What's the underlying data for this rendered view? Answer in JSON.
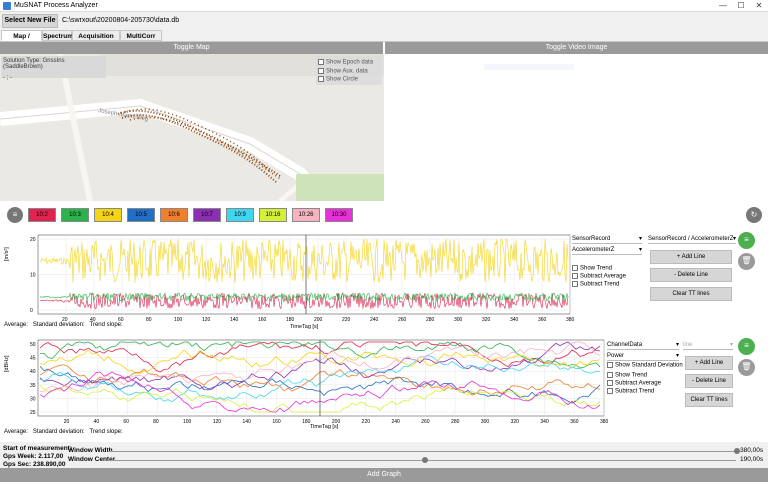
{
  "window": {
    "title": "MuSNAT Process Analyzer",
    "minimize": "—",
    "maximize": "☐",
    "close": "✕"
  },
  "file": {
    "select_label": "Select New File",
    "path": "C:\\swrxout\\20200804-205730\\data.db"
  },
  "tabs": [
    "Map / Graphs",
    "Spectrum",
    "Acquisition Plot",
    "MultiCorr Plot"
  ],
  "map": {
    "toggle_label": "Toggle Map",
    "solution_type": "Solution Type: GnssIns (SaddleBrown)",
    "solution_extra": "- ; -",
    "street_label": "Joseph-Mann-Weg",
    "options": [
      "Show Epoch data",
      "Show Aux. data",
      "Show Circle"
    ]
  },
  "video": {
    "toggle_label": "Toggle Video Image"
  },
  "legend": {
    "items": [
      {
        "label": "10:2",
        "color": "#e0234f"
      },
      {
        "label": "10:3",
        "color": "#2bb24c"
      },
      {
        "label": "10:4",
        "color": "#f5d316"
      },
      {
        "label": "10:5",
        "color": "#1f6fc9"
      },
      {
        "label": "10:6",
        "color": "#f07f2d"
      },
      {
        "label": "10:7",
        "color": "#8b2fb5"
      },
      {
        "label": "10:9",
        "color": "#3fd7f0"
      },
      {
        "label": "10:16",
        "color": "#d6f03a"
      },
      {
        "label": "10:26",
        "color": "#f7b3c0"
      },
      {
        "label": "10:30",
        "color": "#e830d8"
      }
    ]
  },
  "graph1": {
    "ylabel": "[m/s²]",
    "xlabel": "TimeTag [s]",
    "yticks": [
      "20",
      "10",
      "0"
    ],
    "xticks": [
      "20",
      "40",
      "60",
      "80",
      "100",
      "120",
      "140",
      "160",
      "180",
      "200",
      "220",
      "240",
      "260",
      "280",
      "300",
      "320",
      "340",
      "360",
      "380"
    ],
    "source": "SensorRecord",
    "field": "AccelerometerZ",
    "line_select": "SensorRecord / AccelerometerZ",
    "options": [
      "Show Trend",
      "Subtract Average",
      "Subtract Trend"
    ],
    "add_line": "+ Add Line",
    "delete_line": "- Delete Line",
    "clear_tt": "Clear TT lines",
    "stats": {
      "average": "Average:",
      "stddev": "Standard deviation:",
      "trend": "Trend slope:"
    }
  },
  "graph2": {
    "ylabel": "[dBHz]",
    "xlabel": "TimeTag [s]",
    "yticks": [
      "50",
      "45",
      "40",
      "35",
      "30",
      "25"
    ],
    "xticks": [
      "20",
      "40",
      "60",
      "80",
      "100",
      "120",
      "140",
      "160",
      "180",
      "200",
      "220",
      "240",
      "260",
      "280",
      "300",
      "320",
      "340",
      "360",
      "380"
    ],
    "source": "ChannelData",
    "field": "Power",
    "line_select": "line",
    "options": [
      "Show Standard Deviation",
      "Show Trend",
      "Subtract Average",
      "Subtract Trend"
    ],
    "add_line": "+ Add Line",
    "delete_line": "- Delete Line",
    "clear_tt": "Clear TT lines",
    "stats": {
      "average": "Average:",
      "stddev": "Standard deviation:",
      "trend": "Trend slope:"
    }
  },
  "bottom": {
    "start_label": "Start of measurement:",
    "gps_week": "Gps Week: 2.117,00",
    "gps_sec": "Gps Sec: 238.890,00",
    "window_width_label": "Window Width",
    "window_width_value": "380,00s",
    "window_center_label": "Window Center",
    "window_center_value": "190,00s",
    "add_graph": "Add Graph"
  },
  "icons": {
    "menu": "hamburger-icon",
    "refresh": "refresh-icon",
    "trash": "trash-icon"
  },
  "colors": {
    "accent_green": "#4caf50",
    "toggle_gray": "#9a9a9a"
  }
}
